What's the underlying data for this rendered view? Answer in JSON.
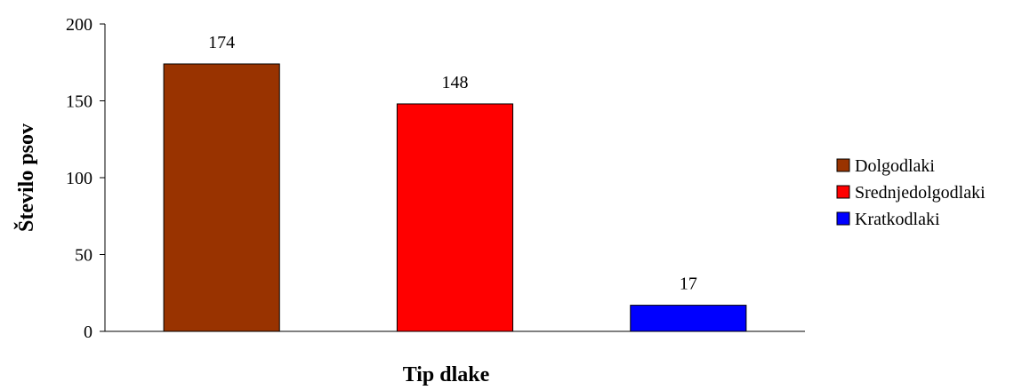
{
  "chart_data": {
    "type": "bar",
    "title": "",
    "xlabel": "Tip dlake",
    "ylabel": "Število psov",
    "ylim": [
      0,
      200
    ],
    "yticks": [
      0,
      50,
      100,
      150,
      200
    ],
    "grid": false,
    "legend_position": "right",
    "categories": [
      "Dolgodlaki",
      "Srednjedolgodlaki",
      "Kratkodlaki"
    ],
    "series": [
      {
        "values": [
          174,
          148,
          17
        ],
        "colors": [
          "#993300",
          "#ff0000",
          "#0000ff"
        ],
        "data_labels": [
          "174",
          "148",
          "17"
        ]
      }
    ]
  }
}
